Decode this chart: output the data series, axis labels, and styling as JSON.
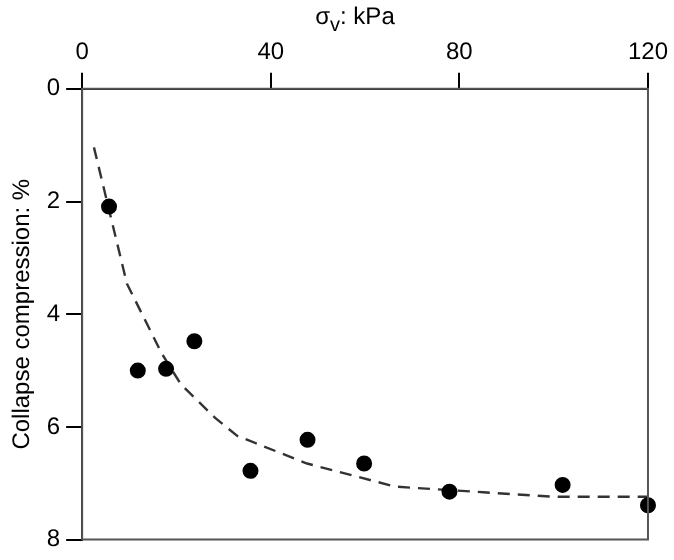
{
  "chart_data": {
    "type": "scatter",
    "xlabel": "σ$_{v}$: kPa",
    "ylabel": "Collapse compression: %",
    "xlim": [
      0,
      120
    ],
    "xticks": [
      0,
      40,
      80,
      120
    ],
    "ylim": [
      8,
      0
    ],
    "yticks": [
      0,
      2,
      4,
      6,
      8
    ],
    "grid": false,
    "series": [
      {
        "color": "#000000",
        "marker": "circle",
        "x": [
          5.7,
          11.8,
          17.8,
          23.8,
          35.7,
          47.8,
          59.8,
          77.9,
          101.9,
          120
        ],
        "values": [
          2.09,
          5.0,
          4.97,
          4.48,
          6.78,
          6.23,
          6.65,
          7.15,
          7.03,
          7.39
        ]
      },
      {
        "type": "line",
        "color": "#333333",
        "line_style": "dashed",
        "marker": "none",
        "x": [
          2.5,
          9.5,
          16.9,
          20.9,
          28.2,
          32.9,
          47.7,
          66.4,
          85.1,
          99.9,
          120
        ],
        "values": [
          1.04,
          3.46,
          4.7,
          5.24,
          5.84,
          6.16,
          6.65,
          7.06,
          7.16,
          7.24,
          7.24
        ]
      }
    ]
  }
}
